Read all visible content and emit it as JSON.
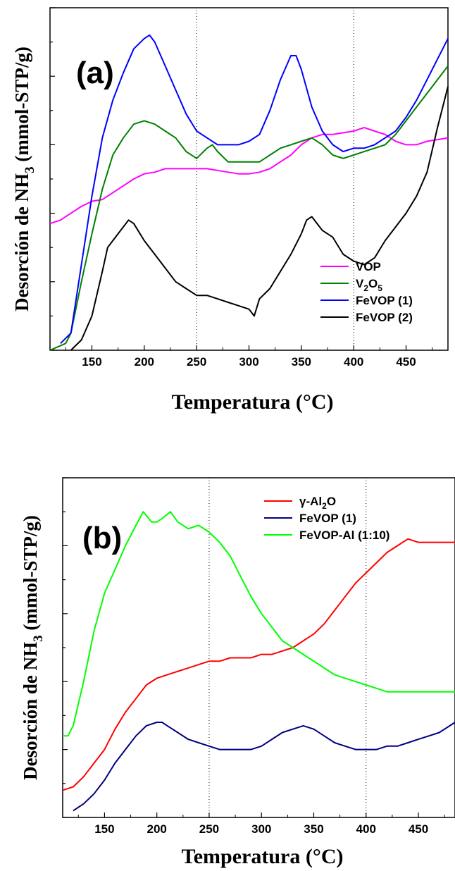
{
  "chart_data": [
    {
      "type": "line",
      "panel_label": "(a)",
      "xlabel": "Temperatura (°C)",
      "ylabel": {
        "pre": "Desorción de NH",
        "sub": "3",
        "post": " (mmol-STP/g)"
      },
      "xlim": [
        110,
        490
      ],
      "ylim": [
        0,
        100
      ],
      "xticks": [
        150,
        200,
        250,
        300,
        350,
        400,
        450
      ],
      "y_tick_labels": false,
      "vlines": [
        250,
        400
      ],
      "legend_position": "bottom-right",
      "series": [
        {
          "name": "VOP",
          "color": "#ff00ff",
          "x": [
            110,
            120,
            130,
            140,
            150,
            160,
            170,
            180,
            190,
            200,
            210,
            220,
            230,
            240,
            250,
            260,
            270,
            280,
            290,
            300,
            310,
            320,
            330,
            340,
            350,
            360,
            370,
            380,
            390,
            400,
            410,
            420,
            430,
            440,
            450,
            460,
            470,
            480,
            490
          ],
          "y": [
            37,
            38,
            40,
            42,
            43.5,
            44,
            46,
            48,
            50,
            51.5,
            52,
            53,
            53,
            53,
            53,
            53,
            52.5,
            52,
            51.5,
            51.5,
            52,
            53,
            55,
            57,
            60,
            62,
            63,
            63,
            63.5,
            64,
            65,
            64,
            63,
            61,
            60,
            60,
            61,
            61.5,
            62
          ]
        },
        {
          "name": "V2O5",
          "legend_html": "V<tspan dy=\"5\" font-size=\"12\">2</tspan><tspan dy=\"-5\">O</tspan><tspan dy=\"5\" font-size=\"12\">5</tspan>",
          "color": "#008000",
          "x": [
            110,
            125,
            130,
            140,
            150,
            160,
            170,
            180,
            190,
            200,
            210,
            220,
            230,
            240,
            250,
            260,
            265,
            270,
            280,
            290,
            300,
            310,
            320,
            330,
            340,
            350,
            360,
            370,
            380,
            390,
            400,
            410,
            420,
            430,
            440,
            450,
            460,
            470,
            480,
            490
          ],
          "y": [
            0,
            2,
            5,
            20,
            34,
            47,
            57,
            62,
            66,
            67,
            66,
            64,
            62,
            58,
            56,
            59,
            60,
            58,
            55,
            55,
            55,
            55,
            57,
            59,
            60,
            61,
            62,
            60,
            57,
            56,
            57,
            58,
            59,
            60,
            63,
            67,
            71,
            75,
            79,
            83
          ]
        },
        {
          "name": "FeVOP (1)",
          "color": "#0000ff",
          "x": [
            120,
            130,
            140,
            150,
            160,
            170,
            180,
            190,
            200,
            205,
            210,
            220,
            230,
            240,
            250,
            260,
            270,
            280,
            290,
            300,
            310,
            320,
            330,
            340,
            345,
            350,
            360,
            370,
            380,
            390,
            400,
            410,
            420,
            430,
            440,
            450,
            460,
            470,
            480,
            490
          ],
          "y": [
            2,
            5,
            25,
            45,
            62,
            73,
            81,
            88,
            91,
            92,
            90,
            83,
            76,
            69,
            64,
            62,
            60,
            60,
            60,
            61,
            63,
            70,
            79,
            86,
            86,
            82,
            71,
            64,
            60,
            58,
            59,
            59,
            60,
            62,
            64,
            68,
            73,
            79,
            85,
            91
          ]
        },
        {
          "name": "FeVOP (2)",
          "color": "#000000",
          "x": [
            130,
            140,
            150,
            160,
            165,
            170,
            180,
            185,
            190,
            200,
            210,
            220,
            230,
            240,
            250,
            260,
            270,
            280,
            290,
            300,
            305,
            310,
            320,
            330,
            340,
            350,
            355,
            360,
            370,
            380,
            390,
            400,
            410,
            420,
            430,
            440,
            450,
            460,
            470,
            480,
            490
          ],
          "y": [
            0,
            3,
            10,
            23,
            30,
            32,
            36,
            38,
            37,
            32,
            28,
            24,
            20,
            18,
            16,
            16,
            15,
            14,
            13,
            12,
            10,
            15,
            18,
            23,
            28,
            34,
            38,
            39,
            35,
            33,
            28,
            26,
            25,
            27,
            32,
            36,
            40,
            45,
            52,
            65,
            77
          ]
        }
      ]
    },
    {
      "type": "line",
      "panel_label": "(b)",
      "xlabel": "Temperatura (°C)",
      "ylabel": {
        "pre": "Desorción de NH",
        "sub": "3",
        "post": " (mmol-STP/g)"
      },
      "xlim": [
        110,
        485
      ],
      "ylim": [
        0,
        100
      ],
      "xticks": [
        150,
        200,
        250,
        300,
        350,
        400,
        450
      ],
      "y_tick_labels": false,
      "vlines": [
        250,
        400
      ],
      "legend_position": "top-right",
      "series": [
        {
          "name": "γ-Al2O",
          "legend_html": "γ-Al<tspan dy=\"5\" font-size=\"12\">2</tspan><tspan dy=\"-5\">O</tspan>",
          "color": "#ff0000",
          "x": [
            110,
            120,
            130,
            140,
            150,
            160,
            170,
            180,
            190,
            200,
            210,
            220,
            230,
            240,
            250,
            260,
            270,
            280,
            290,
            300,
            310,
            320,
            330,
            340,
            350,
            360,
            370,
            380,
            390,
            400,
            410,
            420,
            430,
            440,
            450,
            460,
            470,
            480,
            485
          ],
          "y": [
            8,
            9,
            12,
            16,
            20,
            26,
            31,
            35,
            39,
            41,
            42,
            43,
            44,
            45,
            46,
            46,
            47,
            47,
            47,
            48,
            48,
            49,
            50,
            52,
            54,
            57,
            61,
            65,
            69,
            72,
            75,
            78,
            80,
            82,
            81,
            81,
            81,
            81,
            81
          ]
        },
        {
          "name": "FeVOP (1)",
          "color": "#000080",
          "x": [
            120,
            130,
            140,
            150,
            160,
            170,
            180,
            190,
            200,
            205,
            210,
            220,
            230,
            240,
            250,
            260,
            270,
            280,
            290,
            300,
            310,
            320,
            330,
            340,
            350,
            360,
            370,
            380,
            390,
            400,
            410,
            420,
            430,
            440,
            450,
            460,
            470,
            480,
            485
          ],
          "y": [
            2,
            4,
            7,
            11,
            16,
            20,
            24,
            27,
            28,
            28,
            27,
            25,
            23,
            22,
            21,
            20,
            20,
            20,
            20,
            21,
            23,
            25,
            26,
            27,
            26,
            24,
            22,
            21,
            20,
            20,
            20,
            21,
            21,
            22,
            23,
            24,
            25,
            27,
            28
          ]
        },
        {
          "name": "FeVOP-Al (1:10)",
          "color": "#00ff00",
          "x": [
            110,
            115,
            120,
            130,
            140,
            150,
            160,
            170,
            180,
            187,
            195,
            200,
            205,
            213,
            220,
            230,
            240,
            250,
            260,
            270,
            280,
            290,
            300,
            310,
            320,
            330,
            340,
            350,
            360,
            370,
            380,
            390,
            400,
            410,
            420,
            430,
            440,
            450,
            460,
            470,
            480,
            485
          ],
          "y": [
            24,
            24,
            27,
            40,
            55,
            66,
            73,
            80,
            86,
            90,
            87,
            87,
            88,
            90,
            87,
            85,
            86,
            84,
            81,
            77,
            71,
            65,
            60,
            56,
            52,
            50,
            48,
            46,
            44,
            42,
            41,
            40,
            39,
            38,
            37,
            37,
            37,
            37,
            37,
            37,
            37,
            37
          ]
        }
      ]
    }
  ]
}
